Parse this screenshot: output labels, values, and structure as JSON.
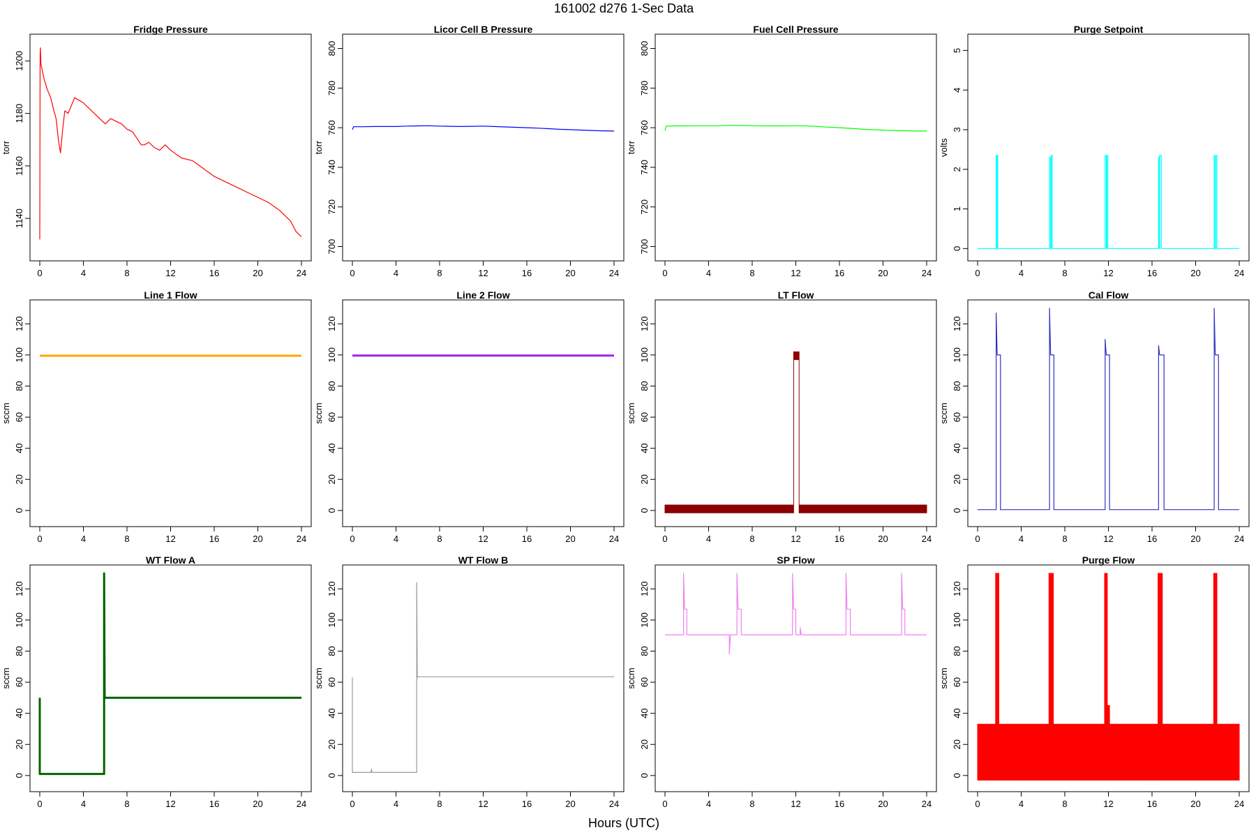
{
  "title": "161002    d276    1-Sec Data",
  "xlabel": "Hours (UTC)",
  "chart_data": [
    {
      "type": "line",
      "title": "Fridge Pressure",
      "ylabel": "torr",
      "color": "#ff0000",
      "xlim": [
        0,
        24
      ],
      "ylim": [
        1127,
        1207
      ],
      "xticks": [
        0,
        4,
        8,
        12,
        16,
        20,
        24
      ],
      "yticks": [
        1140,
        1160,
        1180,
        1200
      ],
      "series": [
        {
          "x": [
            0,
            0.03,
            0.06,
            0.1,
            0.2,
            0.4,
            0.7,
            1.0,
            1.3,
            1.5,
            1.7,
            1.9,
            2.1,
            2.3,
            2.6,
            2.9,
            3.2,
            3.6,
            4.0,
            4.5,
            5.0,
            5.5,
            6.0,
            6.5,
            7.0,
            7.5,
            8.0,
            8.5,
            9.0,
            9.3,
            9.6,
            10.0,
            10.5,
            11.0,
            11.5,
            12.0,
            13.0,
            14.0,
            15.0,
            16.0,
            17.0,
            18.0,
            19.0,
            20.0,
            21.0,
            22.0,
            22.5,
            23.0,
            23.5,
            24.0
          ],
          "y": [
            1132,
            1202,
            1205,
            1199,
            1197,
            1193,
            1189,
            1186,
            1181,
            1178,
            1170,
            1165,
            1174,
            1181,
            1180,
            1183,
            1186,
            1185,
            1184,
            1182,
            1180,
            1178,
            1176,
            1178,
            1177,
            1176,
            1174,
            1173,
            1170,
            1168,
            1168,
            1169,
            1167,
            1166,
            1168,
            1166,
            1163,
            1162,
            1159,
            1156,
            1154,
            1152,
            1150,
            1148,
            1146,
            1143,
            1141,
            1139,
            1135,
            1133
          ]
        }
      ]
    },
    {
      "type": "line",
      "title": "Licor Cell B Pressure",
      "ylabel": "torr",
      "color": "#0000ff",
      "xlim": [
        0,
        24
      ],
      "ylim": [
        697,
        803
      ],
      "xticks": [
        0,
        4,
        8,
        12,
        16,
        20,
        24
      ],
      "yticks": [
        700,
        720,
        740,
        760,
        780,
        800
      ],
      "series": [
        {
          "x": [
            0,
            0.1,
            1,
            2,
            3,
            4,
            5,
            6,
            7,
            8,
            9,
            10,
            11,
            12,
            13,
            14,
            15,
            16,
            17,
            18,
            19,
            20,
            21,
            22,
            23,
            24
          ],
          "y": [
            759,
            760.5,
            760.5,
            760.6,
            760.6,
            760.6,
            760.8,
            760.9,
            761.0,
            760.8,
            760.7,
            760.6,
            760.7,
            760.8,
            760.6,
            760.4,
            760.2,
            760.0,
            759.8,
            759.5,
            759.2,
            759.0,
            758.8,
            758.6,
            758.4,
            758.3
          ]
        }
      ]
    },
    {
      "type": "line",
      "title": "Fuel Cell Pressure",
      "ylabel": "torr",
      "color": "#00ff00",
      "xlim": [
        0,
        24
      ],
      "ylim": [
        697,
        803
      ],
      "xticks": [
        0,
        4,
        8,
        12,
        16,
        20,
        24
      ],
      "yticks": [
        700,
        720,
        740,
        760,
        780,
        800
      ],
      "series": [
        {
          "x": [
            0,
            0.1,
            1,
            2,
            3,
            4,
            5,
            6,
            7,
            8,
            9,
            10,
            11,
            12,
            13,
            14,
            15,
            16,
            17,
            18,
            19,
            20,
            21,
            22,
            23,
            24
          ],
          "y": [
            758.5,
            760.8,
            760.9,
            760.9,
            761.0,
            761.0,
            761.0,
            761.2,
            761.1,
            761.0,
            760.9,
            760.9,
            760.9,
            761.0,
            760.9,
            760.6,
            760.3,
            760.0,
            759.7,
            759.3,
            759.0,
            758.8,
            758.6,
            758.5,
            758.3,
            758.3
          ]
        }
      ]
    },
    {
      "type": "line",
      "title": "Purge Setpoint",
      "ylabel": "volts",
      "color": "#00ffff",
      "xlim": [
        0,
        24
      ],
      "ylim": [
        -0.1,
        5.2
      ],
      "xticks": [
        0,
        4,
        8,
        12,
        16,
        20,
        24
      ],
      "yticks": [
        0,
        1,
        2,
        3,
        4,
        5
      ],
      "series": [
        {
          "x": [
            0,
            1.7,
            1.7,
            1.75,
            1.75,
            1.8,
            1.8,
            1.85,
            1.85,
            1.95,
            1.95,
            6.6,
            6.6,
            6.7,
            6.7,
            6.75,
            6.75,
            6.85,
            6.85,
            6.95,
            6.95,
            11.7,
            11.7,
            11.8,
            11.8,
            11.85,
            11.85,
            11.95,
            11.95,
            16.6,
            16.6,
            16.65,
            16.65,
            16.7,
            16.7,
            16.85,
            16.85,
            16.95,
            16.95,
            21.7,
            21.7,
            21.75,
            21.75,
            21.85,
            21.85,
            21.95,
            21.95,
            24
          ],
          "y": [
            0,
            0,
            2.35,
            2.35,
            0,
            0,
            2.35,
            2.35,
            0,
            0,
            0,
            0,
            2.3,
            2.3,
            0,
            0,
            2.35,
            2.35,
            0,
            0,
            0,
            0,
            2.35,
            2.35,
            0,
            0,
            2.35,
            2.35,
            0,
            0,
            2.3,
            2.3,
            0,
            0,
            2.35,
            2.35,
            0,
            0,
            0,
            0,
            2.35,
            2.35,
            0,
            0,
            2.35,
            2.35,
            0,
            0
          ]
        }
      ]
    },
    {
      "type": "line",
      "title": "Line 1 Flow",
      "ylabel": "sccm",
      "color": "#ffa500",
      "xlim": [
        0,
        24
      ],
      "ylim": [
        -5,
        130
      ],
      "xticks": [
        0,
        4,
        8,
        12,
        16,
        20,
        24
      ],
      "yticks": [
        0,
        20,
        40,
        60,
        80,
        100,
        120
      ],
      "series": [
        {
          "x": [
            0,
            24
          ],
          "y": [
            99.5,
            99.5
          ]
        }
      ]
    },
    {
      "type": "line",
      "title": "Line 2 Flow",
      "ylabel": "sccm",
      "color": "#a020f0",
      "xlim": [
        0,
        24
      ],
      "ylim": [
        -5,
        130
      ],
      "xticks": [
        0,
        4,
        8,
        12,
        16,
        20,
        24
      ],
      "yticks": [
        0,
        20,
        40,
        60,
        80,
        100,
        120
      ],
      "series": [
        {
          "x": [
            0,
            24
          ],
          "y": [
            99.6,
            99.6
          ]
        }
      ]
    },
    {
      "type": "area",
      "title": "LT Flow",
      "ylabel": "sccm",
      "color": "#8b0000",
      "xlim": [
        0,
        24
      ],
      "ylim": [
        -5,
        130
      ],
      "xticks": [
        0,
        4,
        8,
        12,
        16,
        20,
        24
      ],
      "yticks": [
        0,
        20,
        40,
        60,
        80,
        100,
        120
      ],
      "series": [
        {
          "name": "upper",
          "x": [
            0,
            11.8,
            11.8,
            12.3,
            12.3,
            24
          ],
          "y": [
            3.5,
            3.5,
            102,
            102,
            3.5,
            3.5
          ]
        },
        {
          "name": "lower",
          "x": [
            0,
            11.8,
            11.8,
            12.3,
            12.3,
            24
          ],
          "y": [
            -1.5,
            -1.5,
            97,
            97,
            -1.5,
            -1.5
          ]
        }
      ]
    },
    {
      "type": "line",
      "title": "Cal Flow",
      "ylabel": "sccm",
      "color": "#3030c0",
      "xlim": [
        0,
        24
      ],
      "ylim": [
        -5,
        130
      ],
      "xticks": [
        0,
        4,
        8,
        12,
        16,
        20,
        24
      ],
      "yticks": [
        0,
        20,
        40,
        60,
        80,
        100,
        120
      ],
      "series": [
        {
          "x": [
            0,
            1.7,
            1.7,
            1.8,
            1.8,
            2.1,
            2.1,
            6.6,
            6.6,
            6.7,
            6.7,
            7.0,
            7.0,
            11.7,
            11.7,
            11.8,
            11.8,
            12.1,
            12.1,
            16.6,
            16.6,
            16.7,
            16.7,
            17.1,
            17.1,
            21.7,
            21.7,
            21.8,
            21.8,
            22.1,
            22.1,
            24
          ],
          "y": [
            0.5,
            0.5,
            127,
            100,
            100,
            100,
            0.5,
            0.5,
            130,
            100,
            100,
            100,
            0.5,
            0.5,
            110,
            100,
            100,
            100,
            0.5,
            0.5,
            106,
            100,
            100,
            100,
            0.5,
            0.5,
            130,
            100,
            100,
            100,
            0.5,
            0.5
          ]
        }
      ]
    },
    {
      "type": "line",
      "title": "WT Flow A",
      "ylabel": "sccm",
      "color": "#006400",
      "xlim": [
        0,
        24
      ],
      "ylim": [
        -5,
        130
      ],
      "xticks": [
        0,
        4,
        8,
        12,
        16,
        20,
        24
      ],
      "yticks": [
        0,
        20,
        40,
        60,
        80,
        100,
        120
      ],
      "series": [
        {
          "x": [
            0,
            0,
            0.1,
            5.9,
            5.9,
            5.95,
            6.0,
            24
          ],
          "y": [
            50,
            1,
            1,
            1,
            130,
            50,
            50,
            50
          ]
        }
      ]
    },
    {
      "type": "line",
      "title": "WT Flow B",
      "ylabel": "sccm",
      "color": "#999999",
      "xlim": [
        0,
        24
      ],
      "ylim": [
        -5,
        130
      ],
      "xticks": [
        0,
        4,
        8,
        12,
        16,
        20,
        24
      ],
      "yticks": [
        0,
        20,
        40,
        60,
        80,
        100,
        120
      ],
      "series": [
        {
          "x": [
            0,
            0,
            0.1,
            1.7,
            1.75,
            1.8,
            5.9,
            5.9,
            5.95,
            6.0,
            24
          ],
          "y": [
            63,
            2,
            2,
            2,
            4,
            2,
            2,
            124,
            63,
            63.5,
            63.5
          ]
        }
      ]
    },
    {
      "type": "line",
      "title": "SP Flow",
      "ylabel": "sccm",
      "color": "#ee82ee",
      "xlim": [
        0,
        24
      ],
      "ylim": [
        -5,
        130
      ],
      "xticks": [
        0,
        4,
        8,
        12,
        16,
        20,
        24
      ],
      "yticks": [
        0,
        20,
        40,
        60,
        80,
        100,
        120
      ],
      "series": [
        {
          "x": [
            0,
            1.7,
            1.7,
            1.8,
            2.0,
            2.0,
            5.9,
            5.9,
            6.0,
            6.6,
            6.6,
            6.7,
            7.0,
            7.0,
            11.7,
            11.7,
            11.8,
            12.0,
            12.0,
            12.4,
            12.4,
            12.5,
            16.6,
            16.6,
            16.7,
            17.0,
            17.0,
            21.7,
            21.7,
            21.8,
            22.0,
            22.0,
            24
          ],
          "y": [
            90.5,
            90.5,
            130,
            107,
            107,
            90.5,
            90.5,
            78,
            90.5,
            90.5,
            130,
            107,
            107,
            90.5,
            90.5,
            130,
            107,
            107,
            90.5,
            90.5,
            95,
            90.5,
            90.5,
            130,
            107,
            107,
            90.5,
            90.5,
            130,
            107,
            107,
            90.5,
            90.5
          ]
        }
      ]
    },
    {
      "type": "area",
      "title": "Purge Flow",
      "ylabel": "sccm",
      "color": "#ff0000",
      "xlim": [
        0,
        24
      ],
      "ylim": [
        -5,
        130
      ],
      "xticks": [
        0,
        4,
        8,
        12,
        16,
        20,
        24
      ],
      "yticks": [
        0,
        20,
        40,
        60,
        80,
        100,
        120
      ],
      "series": [
        {
          "name": "upper",
          "x": [
            0,
            1.65,
            1.65,
            1.95,
            1.95,
            6.55,
            6.55,
            6.95,
            6.95,
            11.65,
            11.65,
            11.9,
            11.9,
            12.1,
            12.1,
            16.55,
            16.55,
            16.95,
            16.95,
            21.65,
            21.65,
            21.95,
            21.95,
            24
          ],
          "y": [
            33,
            33,
            130,
            130,
            33,
            33,
            130,
            130,
            33,
            33,
            130,
            130,
            45,
            45,
            33,
            33,
            130,
            130,
            33,
            33,
            130,
            130,
            33,
            33
          ]
        },
        {
          "name": "lower",
          "x": [
            0,
            24
          ],
          "y": [
            -3,
            -3
          ]
        }
      ]
    }
  ]
}
